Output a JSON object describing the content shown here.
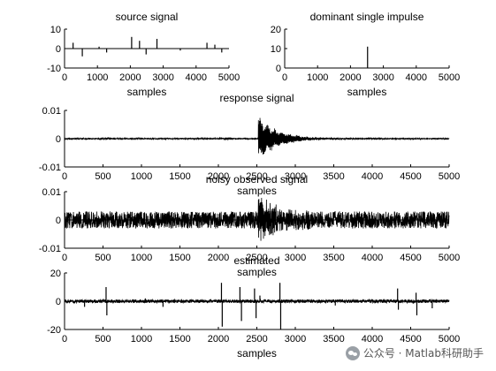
{
  "chart_data": [
    {
      "type": "line",
      "title": "source signal",
      "xlabel": "samples",
      "ylabel": "",
      "xlim": [
        0,
        5000
      ],
      "ylim": [
        -10,
        10
      ],
      "xticks": [
        "0",
        "1000",
        "2000",
        "3000",
        "4000",
        "5000"
      ],
      "yticks": [
        "10",
        "0",
        "-10"
      ],
      "spikes": [
        {
          "x": 260,
          "y": 3
        },
        {
          "x": 540,
          "y": -4
        },
        {
          "x": 1050,
          "y": 1
        },
        {
          "x": 1280,
          "y": -2
        },
        {
          "x": 2040,
          "y": 6
        },
        {
          "x": 2280,
          "y": 4
        },
        {
          "x": 2480,
          "y": -3
        },
        {
          "x": 2810,
          "y": 5
        },
        {
          "x": 3520,
          "y": -1
        },
        {
          "x": 4330,
          "y": 3
        },
        {
          "x": 4570,
          "y": 2
        },
        {
          "x": 4780,
          "y": -2
        }
      ]
    },
    {
      "type": "line",
      "title": "dominant single impulse",
      "xlabel": "samples",
      "ylabel": "",
      "xlim": [
        0,
        5000
      ],
      "ylim": [
        0,
        20
      ],
      "xticks": [
        "0",
        "1000",
        "2000",
        "3000",
        "4000",
        "5000"
      ],
      "yticks": [
        "20",
        "10",
        "0"
      ],
      "spikes": [
        {
          "x": 2520,
          "y": 11
        }
      ]
    },
    {
      "type": "line",
      "title": "response signal",
      "xlabel": "samples",
      "ylabel": "",
      "xlim": [
        0,
        5000
      ],
      "ylim": [
        -0.01,
        0.01
      ],
      "xticks": [
        "0",
        "500",
        "1000",
        "1500",
        "2000",
        "2500",
        "3000",
        "3500",
        "4000",
        "4500",
        "5000"
      ],
      "yticks": [
        "0.01",
        "0",
        "-0.01"
      ],
      "noise_amplitude": 0.0002,
      "bursts": [
        {
          "x": 540,
          "width": 120,
          "amplitude": 0.0004
        },
        {
          "x": 2050,
          "width": 80,
          "amplitude": 0.0003
        },
        {
          "x": 2110,
          "width": 150,
          "amplitude": 0.0004
        }
      ],
      "decays": [
        {
          "x": 2520,
          "amplitude": 0.008,
          "decay_samples": 260
        }
      ]
    },
    {
      "type": "line",
      "title": "noisy observed signal",
      "xlabel": "samples",
      "ylabel": "",
      "xlim": [
        0,
        5000
      ],
      "ylim": [
        -0.01,
        0.01
      ],
      "xticks": [
        "0",
        "500",
        "1000",
        "1500",
        "2000",
        "2500",
        "3000",
        "3500",
        "4000",
        "4500",
        "5000"
      ],
      "yticks": [
        "0.01",
        "0",
        "-0.01"
      ],
      "noise_amplitude": 0.003,
      "decays": [
        {
          "x": 2520,
          "amplitude": 0.0085,
          "decay_samples": 240
        }
      ]
    },
    {
      "type": "line",
      "title": "estimated",
      "xlabel": "samples",
      "ylabel": "",
      "xlim": [
        0,
        5000
      ],
      "ylim": [
        -20,
        20
      ],
      "xticks": [
        "0",
        "500",
        "1000",
        "1500",
        "2000",
        "2500",
        "3000",
        "3500",
        "4000",
        "4500",
        "5000"
      ],
      "yticks": [
        "20",
        "0",
        "-20"
      ],
      "noise_amplitude": 1.2,
      "spikes": [
        {
          "x": 260,
          "y": -4
        },
        {
          "x": 540,
          "y": 10
        },
        {
          "x": 550,
          "y": -10
        },
        {
          "x": 1050,
          "y": 2
        },
        {
          "x": 1280,
          "y": -4
        },
        {
          "x": 2040,
          "y": 13
        },
        {
          "x": 2050,
          "y": -18
        },
        {
          "x": 2280,
          "y": 10
        },
        {
          "x": 2300,
          "y": -14
        },
        {
          "x": 2470,
          "y": 9
        },
        {
          "x": 2490,
          "y": -12
        },
        {
          "x": 2540,
          "y": 4
        },
        {
          "x": 2800,
          "y": 13
        },
        {
          "x": 2810,
          "y": -20
        },
        {
          "x": 3520,
          "y": -3
        },
        {
          "x": 4330,
          "y": 9
        },
        {
          "x": 4340,
          "y": -6
        },
        {
          "x": 4570,
          "y": 6
        },
        {
          "x": 4580,
          "y": -10
        },
        {
          "x": 4780,
          "y": -5
        }
      ]
    }
  ],
  "watermark": {
    "text": "公众号 · Matlab科研助手",
    "icon": "wechat-icon"
  }
}
